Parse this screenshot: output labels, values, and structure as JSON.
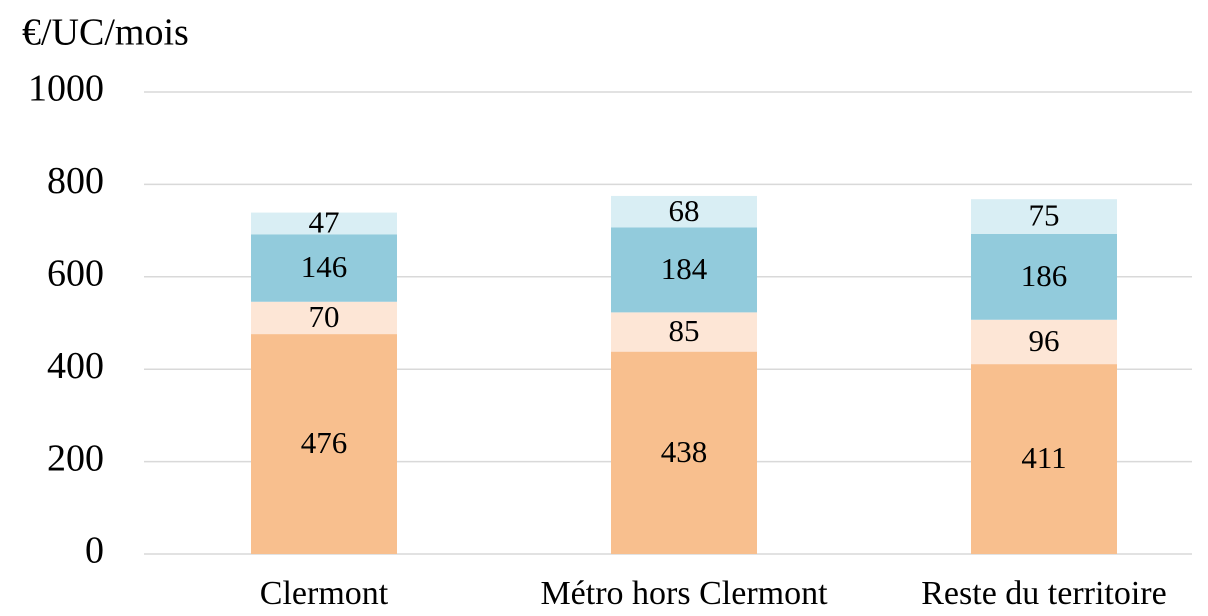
{
  "chart_data": {
    "type": "stacked_bar",
    "y_label": "€/UC/mois",
    "categories": [
      "Clermont",
      "Métro hors Clermont",
      "Reste du territoire"
    ],
    "series": [
      {
        "color": "#f8bf8e",
        "values": [
          476,
          438,
          411
        ]
      },
      {
        "color": "#fde6d6",
        "values": [
          70,
          85,
          96
        ]
      },
      {
        "color": "#92cbdc",
        "values": [
          146,
          184,
          186
        ]
      },
      {
        "color": "#d9eef4",
        "values": [
          47,
          68,
          75
        ]
      }
    ],
    "ylim": [
      0,
      1000
    ],
    "yticks": [
      0,
      200,
      400,
      600,
      800,
      1000
    ],
    "grid": true
  }
}
